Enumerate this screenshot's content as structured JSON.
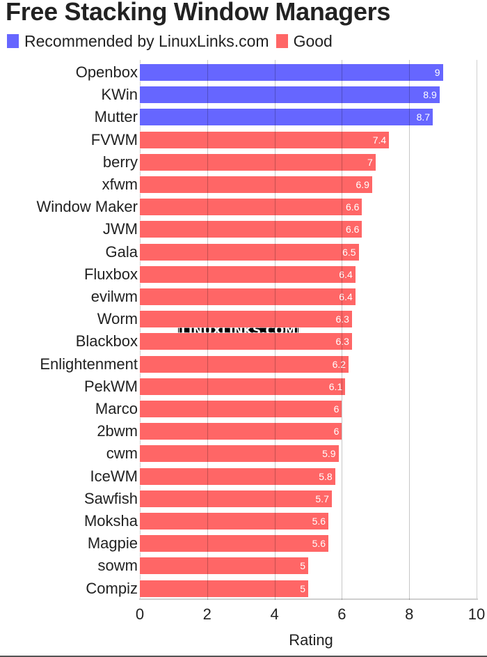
{
  "chart_data": {
    "type": "bar",
    "orientation": "horizontal",
    "title": "Free Stacking Window Managers",
    "xlabel": "Rating",
    "ylabel": "",
    "xlim": [
      0,
      10
    ],
    "xticks": [
      0,
      2,
      4,
      6,
      8,
      10
    ],
    "grid": true,
    "legend_position": "top-left",
    "legend": [
      {
        "name": "Recommended by LinuxLinks.com",
        "color": "#6666ff"
      },
      {
        "name": "Good",
        "color": "#ff6666"
      }
    ],
    "categories": [
      "Openbox",
      "KWin",
      "Mutter",
      "FVWM",
      "berry",
      "xfwm",
      "Window Maker",
      "JWM",
      "Gala",
      "Fluxbox",
      "evilwm",
      "Worm",
      "Blackbox",
      "Enlightenment",
      "PekWM",
      "Marco",
      "2bwm",
      "cwm",
      "IceWM",
      "Sawfish",
      "Moksha",
      "Magpie",
      "sowm",
      "Compiz"
    ],
    "values": [
      9,
      8.9,
      8.7,
      7.4,
      7,
      6.9,
      6.6,
      6.6,
      6.5,
      6.4,
      6.4,
      6.3,
      6.3,
      6.2,
      6.1,
      6,
      6,
      5.9,
      5.8,
      5.7,
      5.6,
      5.6,
      5,
      5
    ],
    "series_membership": [
      "Recommended by LinuxLinks.com",
      "Recommended by LinuxLinks.com",
      "Recommended by LinuxLinks.com",
      "Good",
      "Good",
      "Good",
      "Good",
      "Good",
      "Good",
      "Good",
      "Good",
      "Good",
      "Good",
      "Good",
      "Good",
      "Good",
      "Good",
      "Good",
      "Good",
      "Good",
      "Good",
      "Good",
      "Good",
      "Good"
    ],
    "watermark": "LINUXLINKS.COM"
  },
  "colors": {
    "recommended": "#6666ff",
    "good": "#ff6666"
  }
}
